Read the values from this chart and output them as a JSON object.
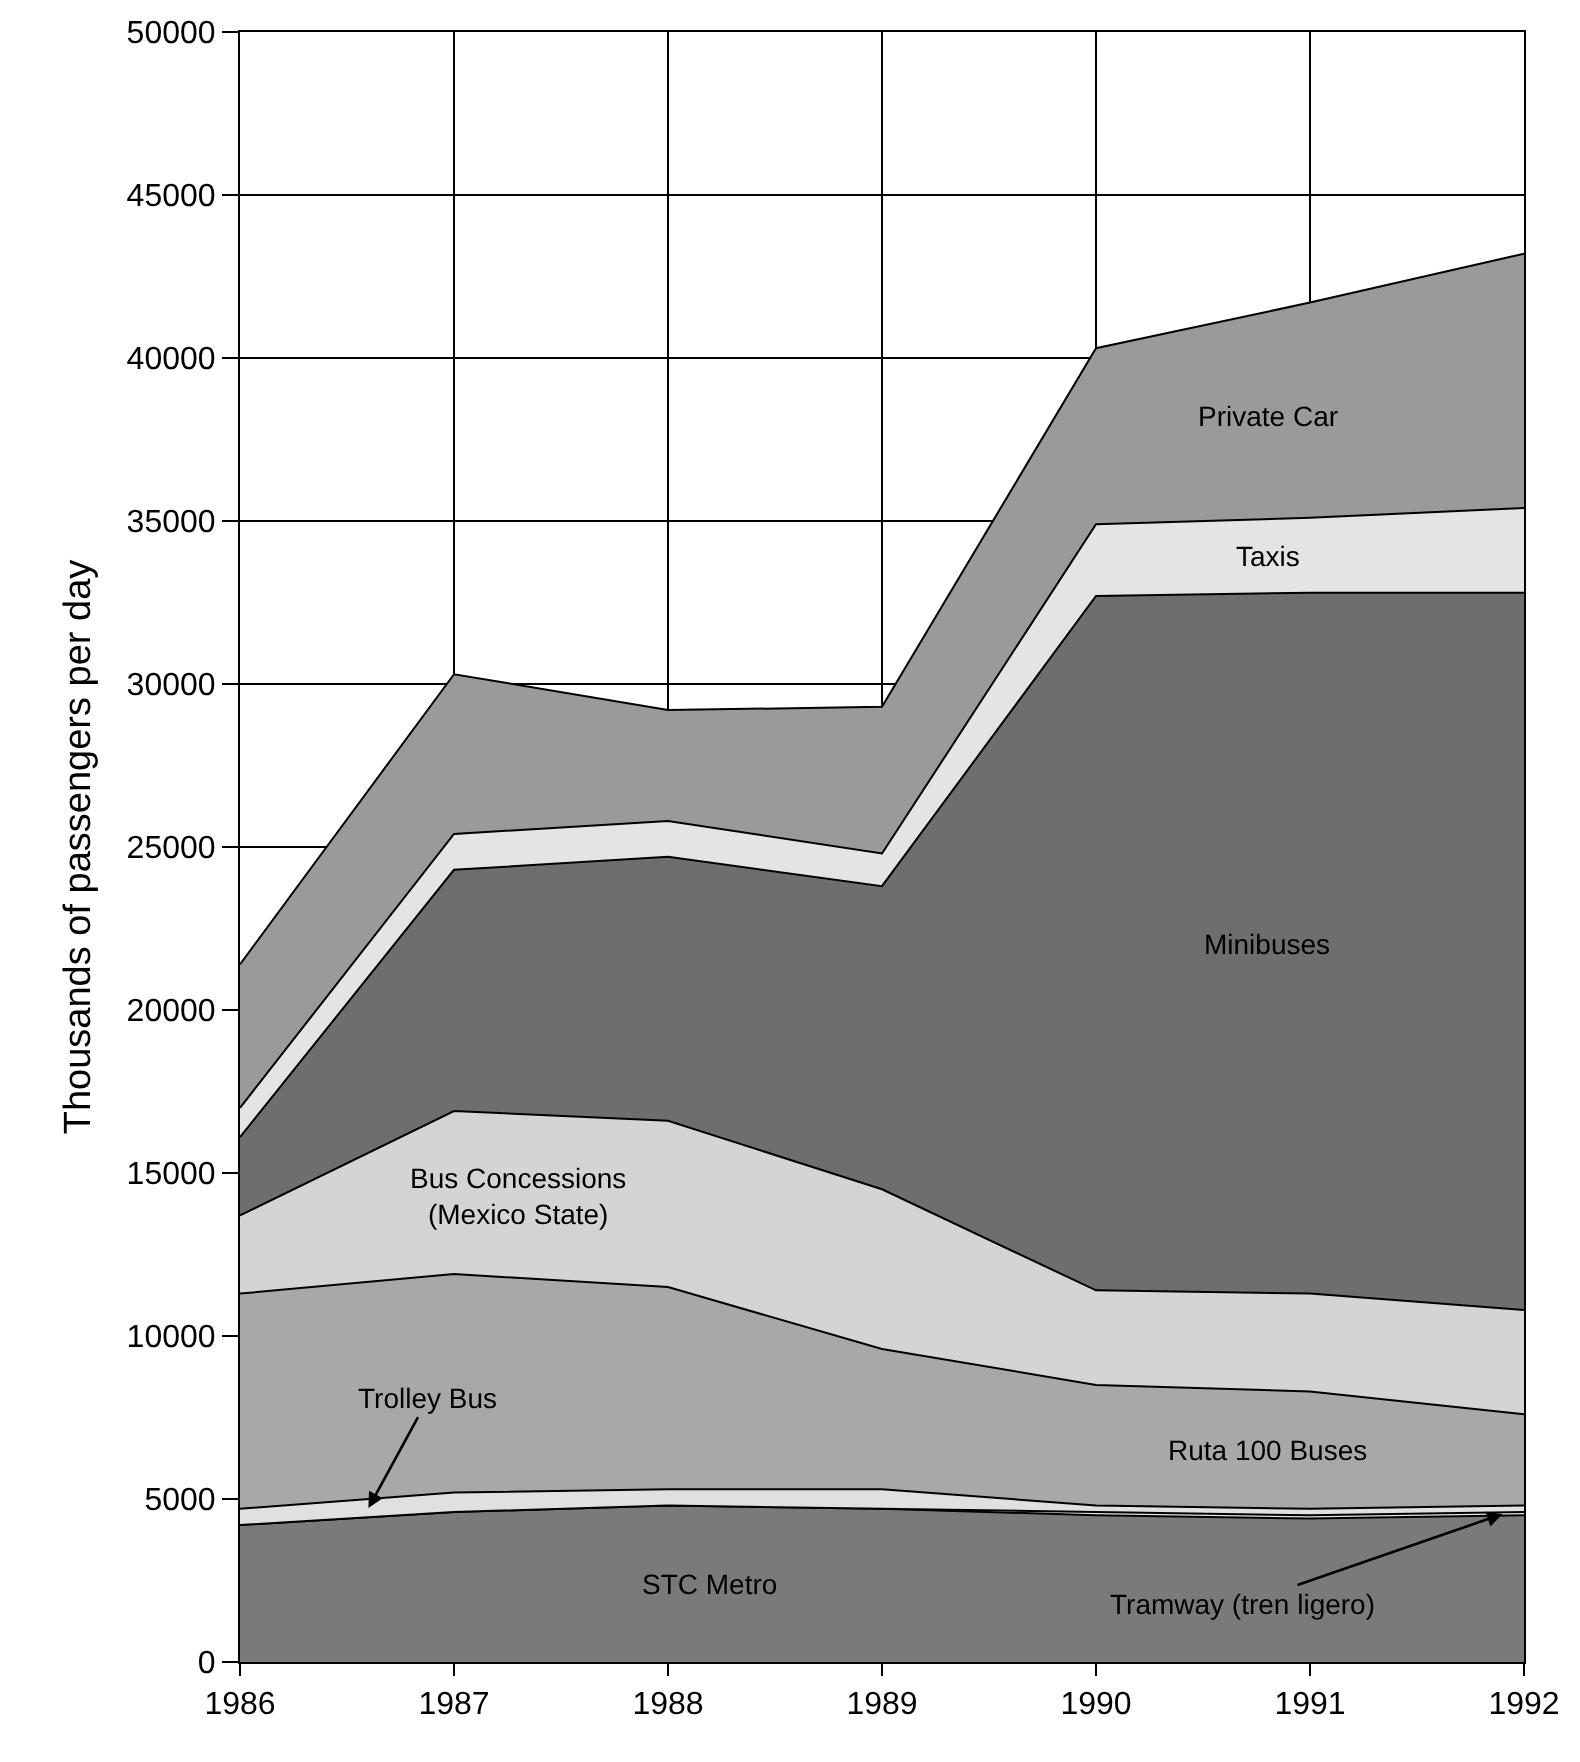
{
  "chart_data": {
    "type": "area",
    "stacked": true,
    "ylabel": "Thousands of passengers per day",
    "x": [
      1986,
      1987,
      1988,
      1989,
      1990,
      1991,
      1992
    ],
    "xlim": [
      1986,
      1992
    ],
    "xticks": [
      1986,
      1987,
      1988,
      1989,
      1990,
      1991,
      1992
    ],
    "ylim": [
      0,
      50000
    ],
    "yticks": [
      0,
      5000,
      10000,
      15000,
      20000,
      25000,
      30000,
      35000,
      40000,
      45000,
      50000
    ],
    "grid": true,
    "legend": false,
    "series": [
      {
        "name": "STC Metro",
        "color": "#7a7a7a",
        "values": [
          4200,
          4600,
          4800,
          4700,
          4500,
          4400,
          4500
        ]
      },
      {
        "name": "Tramway (tren ligero)",
        "color": "#e6e6e6",
        "values": [
          0,
          0,
          0,
          0,
          100,
          100,
          100
        ]
      },
      {
        "name": "Trolley Bus",
        "color": "#e0e0e0",
        "values": [
          500,
          600,
          500,
          600,
          200,
          200,
          200
        ]
      },
      {
        "name": "Ruta 100 Buses",
        "color": "#a8a8a8",
        "values": [
          6600,
          6700,
          6200,
          4300,
          3700,
          3600,
          2800
        ]
      },
      {
        "name": "Bus Concessions (Mexico State)",
        "color": "#d4d4d4",
        "values": [
          2400,
          5000,
          5100,
          4900,
          2900,
          3000,
          3200
        ]
      },
      {
        "name": "Minibuses",
        "color": "#6e6e6e",
        "values": [
          2400,
          7400,
          8100,
          9300,
          21300,
          21500,
          22000
        ]
      },
      {
        "name": "Taxis",
        "color": "#e4e4e4",
        "values": [
          900,
          1100,
          1100,
          1000,
          2200,
          2300,
          2600
        ]
      },
      {
        "name": "Private Car",
        "color": "#9a9a9a",
        "values": [
          4400,
          4900,
          3400,
          4500,
          5400,
          6600,
          7800
        ]
      }
    ]
  }
}
